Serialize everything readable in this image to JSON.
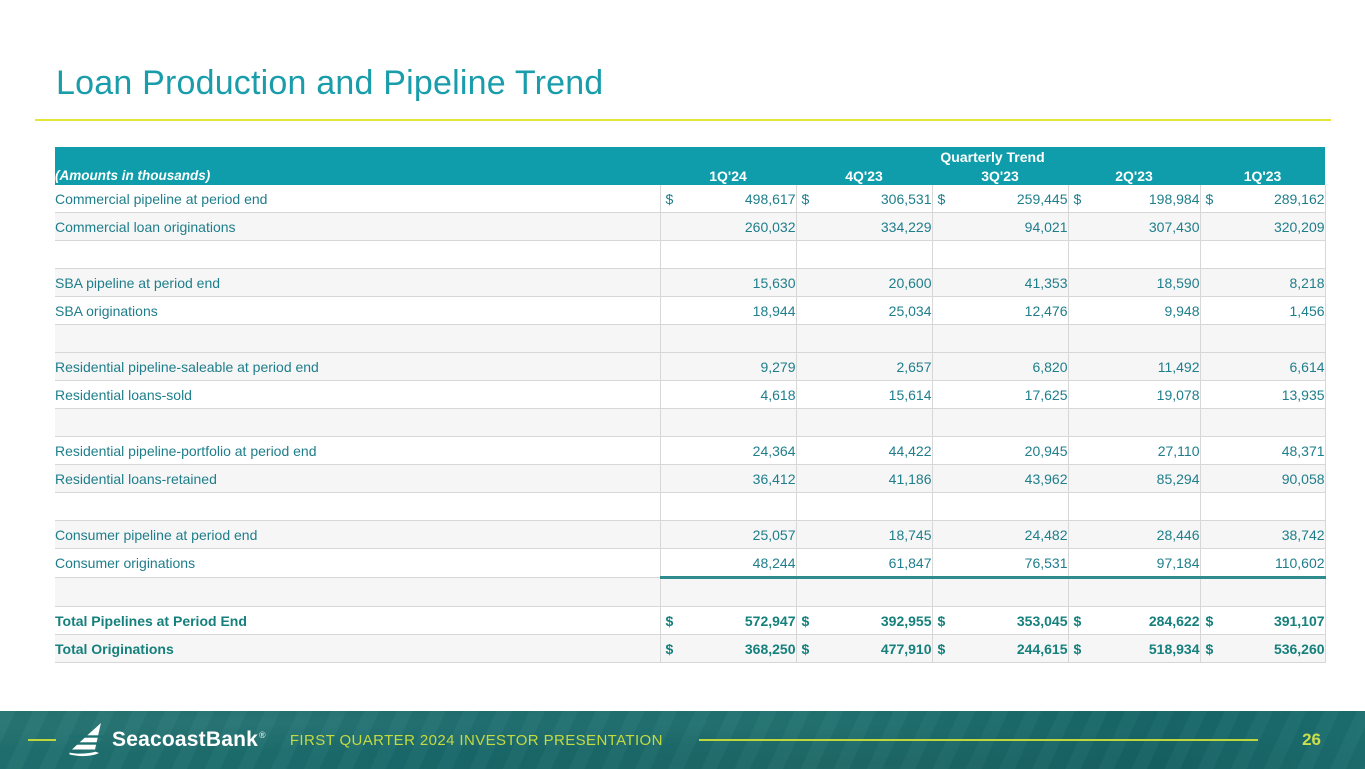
{
  "slide": {
    "title": "Loan Production and Pipeline Trend",
    "footer": {
      "brand": "SeacoastBank",
      "registered_mark": "®",
      "caption": "FIRST QUARTER 2024 INVESTOR PRESENTATION",
      "page_number": "26"
    }
  },
  "colors": {
    "title_teal": "#1a9dab",
    "table_header_teal": "#0f9dab",
    "row_text_teal": "#1e7e8b",
    "total_text_teal": "#15807c",
    "accent_yellow": "#e6e53a",
    "footer_green": "#bfd73c",
    "footer_teal": "#1d6f70",
    "stripe_gray": "#f6f6f6",
    "border_gray": "#d7d7d7",
    "sum_underline_teal": "#2e8c8e"
  },
  "table": {
    "group_header": "Quarterly Trend",
    "corner_label": "(Amounts in thousands)",
    "dollar_sign": "$",
    "columns": [
      "1Q'24",
      "4Q'23",
      "3Q'23",
      "2Q'23",
      "1Q'23"
    ],
    "rows": [
      {
        "label": "Commercial pipeline at period end",
        "dollar": true,
        "values": [
          "498,617",
          "306,531",
          "259,445",
          "198,984",
          "289,162"
        ],
        "shade": "white"
      },
      {
        "label": "Commercial loan originations",
        "dollar": false,
        "values": [
          "260,032",
          "334,229",
          "94,021",
          "307,430",
          "320,209"
        ],
        "shade": "gray"
      },
      {
        "label": "",
        "blank": true,
        "values": [
          "",
          "",
          "",
          "",
          ""
        ],
        "shade": "white"
      },
      {
        "label": "SBA pipeline at period end",
        "dollar": false,
        "values": [
          "15,630",
          "20,600",
          "41,353",
          "18,590",
          "8,218"
        ],
        "shade": "gray"
      },
      {
        "label": "SBA originations",
        "dollar": false,
        "values": [
          "18,944",
          "25,034",
          "12,476",
          "9,948",
          "1,456"
        ],
        "shade": "white"
      },
      {
        "label": "",
        "blank": true,
        "values": [
          "",
          "",
          "",
          "",
          ""
        ],
        "shade": "gray"
      },
      {
        "label": "Residential pipeline-saleable at period end",
        "dollar": false,
        "values": [
          "9,279",
          "2,657",
          "6,820",
          "11,492",
          "6,614"
        ],
        "shade": "gray"
      },
      {
        "label": "Residential loans-sold",
        "dollar": false,
        "values": [
          "4,618",
          "15,614",
          "17,625",
          "19,078",
          "13,935"
        ],
        "shade": "white"
      },
      {
        "label": "",
        "blank": true,
        "values": [
          "",
          "",
          "",
          "",
          ""
        ],
        "shade": "gray"
      },
      {
        "label": "Residential pipeline-portfolio at period end",
        "dollar": false,
        "values": [
          "24,364",
          "44,422",
          "20,945",
          "27,110",
          "48,371"
        ],
        "shade": "white"
      },
      {
        "label": "Residential loans-retained",
        "dollar": false,
        "values": [
          "36,412",
          "41,186",
          "43,962",
          "85,294",
          "90,058"
        ],
        "shade": "gray"
      },
      {
        "label": "",
        "blank": true,
        "values": [
          "",
          "",
          "",
          "",
          ""
        ],
        "shade": "white"
      },
      {
        "label": "Consumer pipeline at period end",
        "dollar": false,
        "values": [
          "25,057",
          "18,745",
          "24,482",
          "28,446",
          "38,742"
        ],
        "shade": "gray"
      },
      {
        "label": "Consumer originations",
        "dollar": false,
        "values": [
          "48,244",
          "61,847",
          "76,531",
          "97,184",
          "110,602"
        ],
        "shade": "white",
        "underline_after": true
      },
      {
        "label": "",
        "blank": true,
        "values": [
          "",
          "",
          "",
          "",
          ""
        ],
        "shade": "gray"
      },
      {
        "label": "Total Pipelines at Period End",
        "dollar": true,
        "values": [
          "572,947",
          "392,955",
          "353,045",
          "284,622",
          "391,107"
        ],
        "shade": "white",
        "bold": true
      },
      {
        "label": "Total Originations",
        "dollar": true,
        "values": [
          "368,250",
          "477,910",
          "244,615",
          "518,934",
          "536,260"
        ],
        "shade": "gray",
        "bold": true
      }
    ]
  }
}
